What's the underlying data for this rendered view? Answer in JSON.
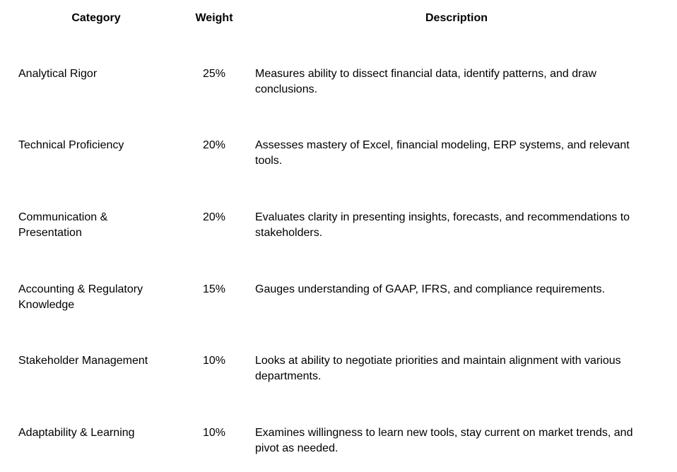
{
  "table": {
    "headers": {
      "category": "Category",
      "weight": "Weight",
      "description": "Description"
    },
    "rows": [
      {
        "category": "Analytical Rigor",
        "weight": "25%",
        "description": "Measures ability to dissect financial data, identify patterns, and draw conclusions."
      },
      {
        "category": "Technical Proficiency",
        "weight": "20%",
        "description": "Assesses mastery of Excel, financial modeling, ERP systems, and relevant tools."
      },
      {
        "category": "Communication & Presentation",
        "weight": "20%",
        "description": "Evaluates clarity in presenting insights, forecasts, and recommendations to stakeholders."
      },
      {
        "category": "Accounting & Regulatory Knowledge",
        "weight": "15%",
        "description": "Gauges understanding of GAAP, IFRS, and compliance requirements."
      },
      {
        "category": "Stakeholder Management",
        "weight": "10%",
        "description": "Looks at ability to negotiate priorities and maintain alignment with various departments."
      },
      {
        "category": "Adaptability & Learning",
        "weight": "10%",
        "description": "Examines willingness to learn new tools, stay current on market trends, and pivot as needed."
      }
    ]
  }
}
